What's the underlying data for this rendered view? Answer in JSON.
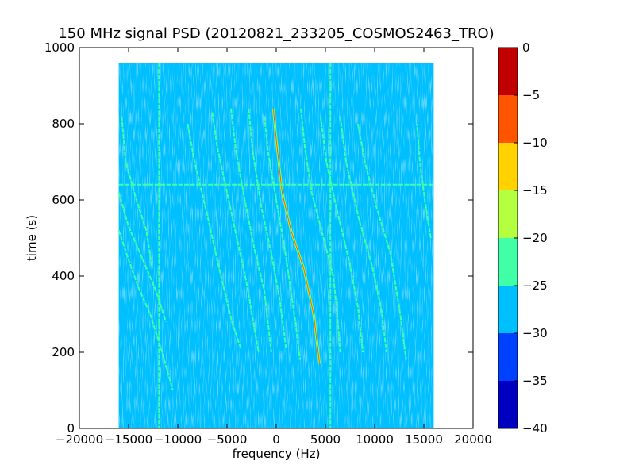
{
  "chart_data": {
    "type": "heatmap",
    "title": "150 MHz signal PSD (20120821_233205_COSMOS2463_TRO)",
    "xlabel": "frequency (Hz)",
    "ylabel": "time (s)",
    "xlim": [
      -20000,
      20000
    ],
    "ylim": [
      0,
      1000
    ],
    "x_ticks": [
      -20000,
      -15000,
      -10000,
      -5000,
      0,
      5000,
      10000,
      15000,
      20000
    ],
    "x_tick_labels": [
      "−20000",
      "−15000",
      "−10000",
      "−5000",
      "0",
      "5000",
      "10000",
      "15000",
      "20000"
    ],
    "y_ticks": [
      0,
      200,
      400,
      600,
      800,
      1000
    ],
    "y_tick_labels": [
      "0",
      "200",
      "400",
      "600",
      "800",
      "1000"
    ],
    "data_extent": {
      "x": [
        -16000,
        16000
      ],
      "y": [
        0,
        960
      ]
    },
    "background_level": -27.5,
    "colorbar": {
      "levels": [
        -40,
        -35,
        -30,
        -25,
        -20,
        -15,
        -10,
        -5,
        0
      ],
      "tick_labels": [
        "−40",
        "−35",
        "−30",
        "−25",
        "−20",
        "−15",
        "−10",
        "−5",
        "0"
      ],
      "colors": [
        "#0000c0",
        "#0040ff",
        "#00bfff",
        "#40ffa6",
        "#b3ff40",
        "#ffd200",
        "#ff5500",
        "#c00000"
      ]
    },
    "traces": [
      {
        "level": -12,
        "points": [
          [
            -300,
            840
          ],
          [
            0,
            760
          ],
          [
            600,
            620
          ],
          [
            1500,
            520
          ],
          [
            2800,
            420
          ],
          [
            3800,
            300
          ],
          [
            4400,
            170
          ]
        ]
      },
      {
        "level": -22,
        "points": [
          [
            -1200,
            820
          ],
          [
            -800,
            720
          ],
          [
            0,
            600
          ],
          [
            1000,
            450
          ],
          [
            2000,
            270
          ],
          [
            2400,
            180
          ]
        ]
      },
      {
        "level": -22,
        "points": [
          [
            -2800,
            840
          ],
          [
            -2400,
            730
          ],
          [
            -1500,
            580
          ],
          [
            -500,
            460
          ],
          [
            400,
            330
          ],
          [
            1000,
            210
          ]
        ]
      },
      {
        "level": -22,
        "points": [
          [
            -4600,
            840
          ],
          [
            -4100,
            730
          ],
          [
            -3200,
            600
          ],
          [
            -2200,
            470
          ],
          [
            -1200,
            360
          ],
          [
            -500,
            200
          ]
        ]
      },
      {
        "level": -22,
        "points": [
          [
            -6500,
            830
          ],
          [
            -6000,
            740
          ],
          [
            -5000,
            620
          ],
          [
            -4000,
            500
          ],
          [
            -3000,
            380
          ],
          [
            -1800,
            200
          ]
        ]
      },
      {
        "level": -22,
        "points": [
          [
            -9000,
            800
          ],
          [
            -8300,
            700
          ],
          [
            -7000,
            560
          ],
          [
            -5800,
            420
          ],
          [
            -4500,
            280
          ],
          [
            -3600,
            210
          ]
        ]
      },
      {
        "level": -22,
        "points": [
          [
            2500,
            840
          ],
          [
            2900,
            740
          ],
          [
            3600,
            620
          ],
          [
            4800,
            500
          ],
          [
            5800,
            400
          ],
          [
            6200,
            300
          ],
          [
            6500,
            200
          ]
        ]
      },
      {
        "level": -22,
        "points": [
          [
            4500,
            820
          ],
          [
            5100,
            700
          ],
          [
            6200,
            570
          ],
          [
            7400,
            440
          ],
          [
            8300,
            320
          ],
          [
            8800,
            200
          ]
        ]
      },
      {
        "level": -22,
        "points": [
          [
            6500,
            820
          ],
          [
            7100,
            700
          ],
          [
            8400,
            550
          ],
          [
            9800,
            420
          ],
          [
            10700,
            310
          ],
          [
            11200,
            200
          ]
        ]
      },
      {
        "level": -22,
        "points": [
          [
            8300,
            800
          ],
          [
            9000,
            700
          ],
          [
            10200,
            580
          ],
          [
            11600,
            460
          ],
          [
            12600,
            300
          ],
          [
            13200,
            180
          ]
        ]
      },
      {
        "level": -22,
        "points": [
          [
            -16000,
            520
          ],
          [
            -15100,
            450
          ],
          [
            -14000,
            370
          ],
          [
            -12800,
            300
          ],
          [
            -11600,
            200
          ],
          [
            -10500,
            100
          ]
        ]
      },
      {
        "level": -22,
        "points": [
          [
            -16000,
            620
          ],
          [
            -15000,
            530
          ],
          [
            -13500,
            440
          ],
          [
            -12200,
            360
          ],
          [
            -11200,
            280
          ]
        ]
      },
      {
        "level": -22,
        "points": [
          [
            -15700,
            820
          ],
          [
            -15300,
            700
          ],
          [
            -14200,
            600
          ],
          [
            -13200,
            520
          ],
          [
            -12600,
            420
          ]
        ]
      },
      {
        "level": -22,
        "points": [
          [
            15700,
            500
          ],
          [
            15100,
            600
          ],
          [
            14600,
            700
          ],
          [
            14300,
            800
          ]
        ]
      },
      {
        "level": -22,
        "points": [
          [
            -11900,
            960
          ],
          [
            -11900,
            0
          ]
        ]
      },
      {
        "level": -24,
        "points": [
          [
            5500,
            960
          ],
          [
            5500,
            0
          ]
        ]
      },
      {
        "level": -24,
        "points": [
          [
            -16000,
            640
          ],
          [
            16000,
            640
          ]
        ]
      }
    ]
  }
}
